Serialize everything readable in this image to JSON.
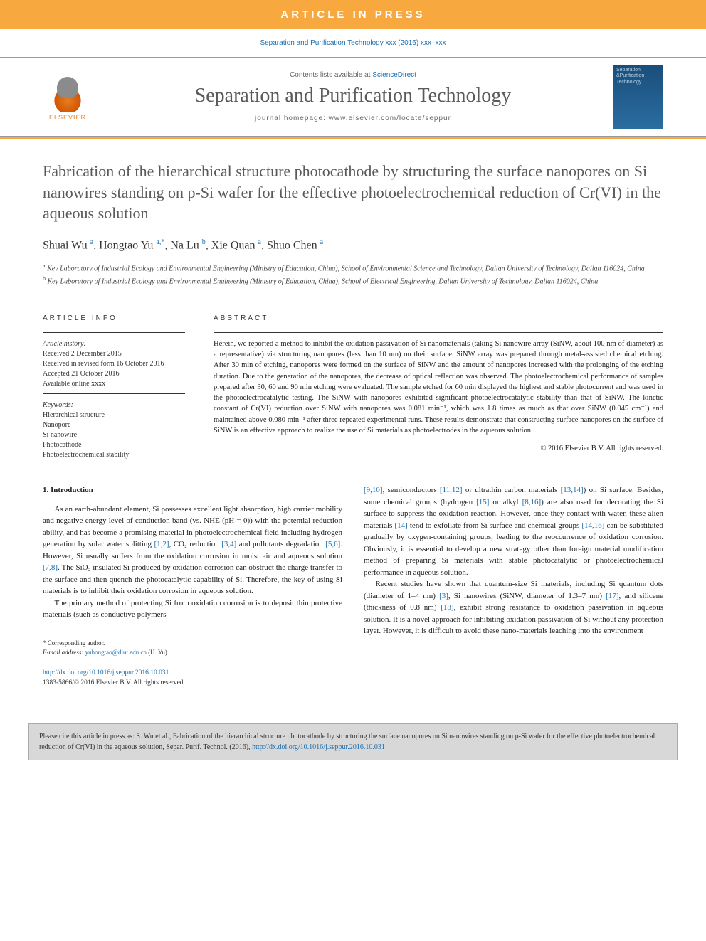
{
  "banner": {
    "text": "ARTICLE IN PRESS"
  },
  "citation_top": "Separation and Purification Technology xxx (2016) xxx–xxx",
  "header": {
    "elsevier": "ELSEVIER",
    "contents_prefix": "Contents lists available at ",
    "contents_link": "ScienceDirect",
    "journal_name": "Separation and Purification Technology",
    "homepage_label": "journal homepage: ",
    "homepage_url": "www.elsevier.com/locate/seppur",
    "cover_line1": "Separation",
    "cover_line2": "&Purification",
    "cover_line3": "Technology"
  },
  "title": "Fabrication of the hierarchical structure photocathode by structuring the surface nanopores on Si nanowires standing on p-Si wafer for the effective photoelectrochemical reduction of Cr(VI) in the aqueous solution",
  "authors_html": "Shuai Wu <sup>a</sup>, Hongtao Yu <sup>a,*</sup>, Na Lu <sup>b</sup>, Xie Quan <sup>a</sup>, Shuo Chen <sup>a</sup>",
  "affiliations": {
    "a": "Key Laboratory of Industrial Ecology and Environmental Engineering (Ministry of Education, China), School of Environmental Science and Technology, Dalian University of Technology, Dalian 116024, China",
    "b": "Key Laboratory of Industrial Ecology and Environmental Engineering (Ministry of Education, China), School of Electrical Engineering, Dalian University of Technology, Dalian 116024, China"
  },
  "info": {
    "heading": "ARTICLE INFO",
    "history_label": "Article history:",
    "history": [
      "Received 2 December 2015",
      "Received in revised form 16 October 2016",
      "Accepted 21 October 2016",
      "Available online xxxx"
    ],
    "keywords_label": "Keywords:",
    "keywords": [
      "Hierarchical structure",
      "Nanopore",
      "Si nanowire",
      "Photocathode",
      "Photoelectrochemical stability"
    ]
  },
  "abstract": {
    "heading": "ABSTRACT",
    "text": "Herein, we reported a method to inhibit the oxidation passivation of Si nanomaterials (taking Si nanowire array (SiNW, about 100 nm of diameter) as a representative) via structuring nanopores (less than 10 nm) on their surface. SiNW array was prepared through metal-assisted chemical etching. After 30 min of etching, nanopores were formed on the surface of SiNW and the amount of nanopores increased with the prolonging of the etching duration. Due to the generation of the nanopores, the decrease of optical reflection was observed. The photoelectrochemical performance of samples prepared after 30, 60 and 90 min etching were evaluated. The sample etched for 60 min displayed the highest and stable photocurrent and was used in the photoelectrocatalytic testing. The SiNW with nanopores exhibited significant photoelectrocatalytic stability than that of SiNW. The kinetic constant of Cr(VI) reduction over SiNW with nanopores was 0.081 min⁻¹, which was 1.8 times as much as that over SiNW (0.045 cm⁻¹) and maintained above 0.080 min⁻¹ after three repeated experimental runs. These results demonstrate that constructing surface nanopores on the surface of SiNW is an effective approach to realize the use of Si materials as photoelectrodes in the aqueous solution.",
    "copyright": "© 2016 Elsevier B.V. All rights reserved."
  },
  "body": {
    "section1_heading": "1. Introduction",
    "col1_p1": "As an earth-abundant element, Si possesses excellent light absorption, high carrier mobility and negative energy level of conduction band (vs. NHE (pH = 0)) with the potential reduction ability, and has become a promising material in photoelectrochemical field including hydrogen generation by solar water splitting <span class=\"ref\">[1,2]</span>, CO₂ reduction <span class=\"ref\">[3,4]</span> and pollutants degradation <span class=\"ref\">[5,6]</span>. However, Si usually suffers from the oxidation corrosion in moist air and aqueous solution <span class=\"ref\">[7,8]</span>. The SiO₂ insulated Si produced by oxidation corrosion can obstruct the charge transfer to the surface and then quench the photocatalytic capability of Si. Therefore, the key of using Si materials is to inhibit their oxidation corrosion in aqueous solution.",
    "col1_p2": "The primary method of protecting Si from oxidation corrosion is to deposit thin protective materials (such as conductive polymers",
    "col2_p1": "<span class=\"ref\">[9,10]</span>, semiconductors <span class=\"ref\">[11,12]</span> or ultrathin carbon materials <span class=\"ref\">[13,14]</span>) on Si surface. Besides, some chemical groups (hydrogen <span class=\"ref\">[15]</span> or alkyl <span class=\"ref\">[8,16]</span>) are also used for decorating the Si surface to suppress the oxidation reaction. However, once they contact with water, these alien materials <span class=\"ref\">[14]</span> tend to exfoliate from Si surface and chemical groups <span class=\"ref\">[14,16]</span> can be substituted gradually by oxygen-containing groups, leading to the reoccurrence of oxidation corrosion. Obviously, it is essential to develop a new strategy other than foreign material modification method of preparing Si materials with stable photocatalytic or photoelectrochemical performance in aqueous solution.",
    "col2_p2": "Recent studies have shown that quantum-size Si materials, including Si quantum dots (diameter of 1–4 nm) <span class=\"ref\">[3]</span>, Si nanowires (SiNW, diameter of 1.3–7 nm) <span class=\"ref\">[17]</span>, and silicene (thickness of 0.8 nm) <span class=\"ref\">[18]</span>, exhibit strong resistance to oxidation passivation in aqueous solution. It is a novel approach for inhibiting oxidation passivation of Si without any protection layer. However, it is difficult to avoid these nano-materials leaching into the environment"
  },
  "corresponding": {
    "marker": "* Corresponding author.",
    "email_label": "E-mail address:",
    "email": "yuhongtao@dlut.edu.cn",
    "email_name": "(H. Yu)."
  },
  "footer": {
    "doi": "http://dx.doi.org/10.1016/j.seppur.2016.10.031",
    "issn": "1383-5866/© 2016 Elsevier B.V. All rights reserved."
  },
  "citebox": {
    "prefix": "Please cite this article in press as: S. Wu et al., Fabrication of the hierarchical structure photocathode by structuring the surface nanopores on Si nanowires standing on p-Si wafer for the effective photoelectrochemical reduction of Cr(VI) in the aqueous solution, Separ. Purif. Technol. (2016), ",
    "doi": "http://dx.doi.org/10.1016/j.seppur.2016.10.031"
  },
  "colors": {
    "orange": "#f7a940",
    "link": "#1a6fb0",
    "gray_text": "#5a5a5a"
  }
}
